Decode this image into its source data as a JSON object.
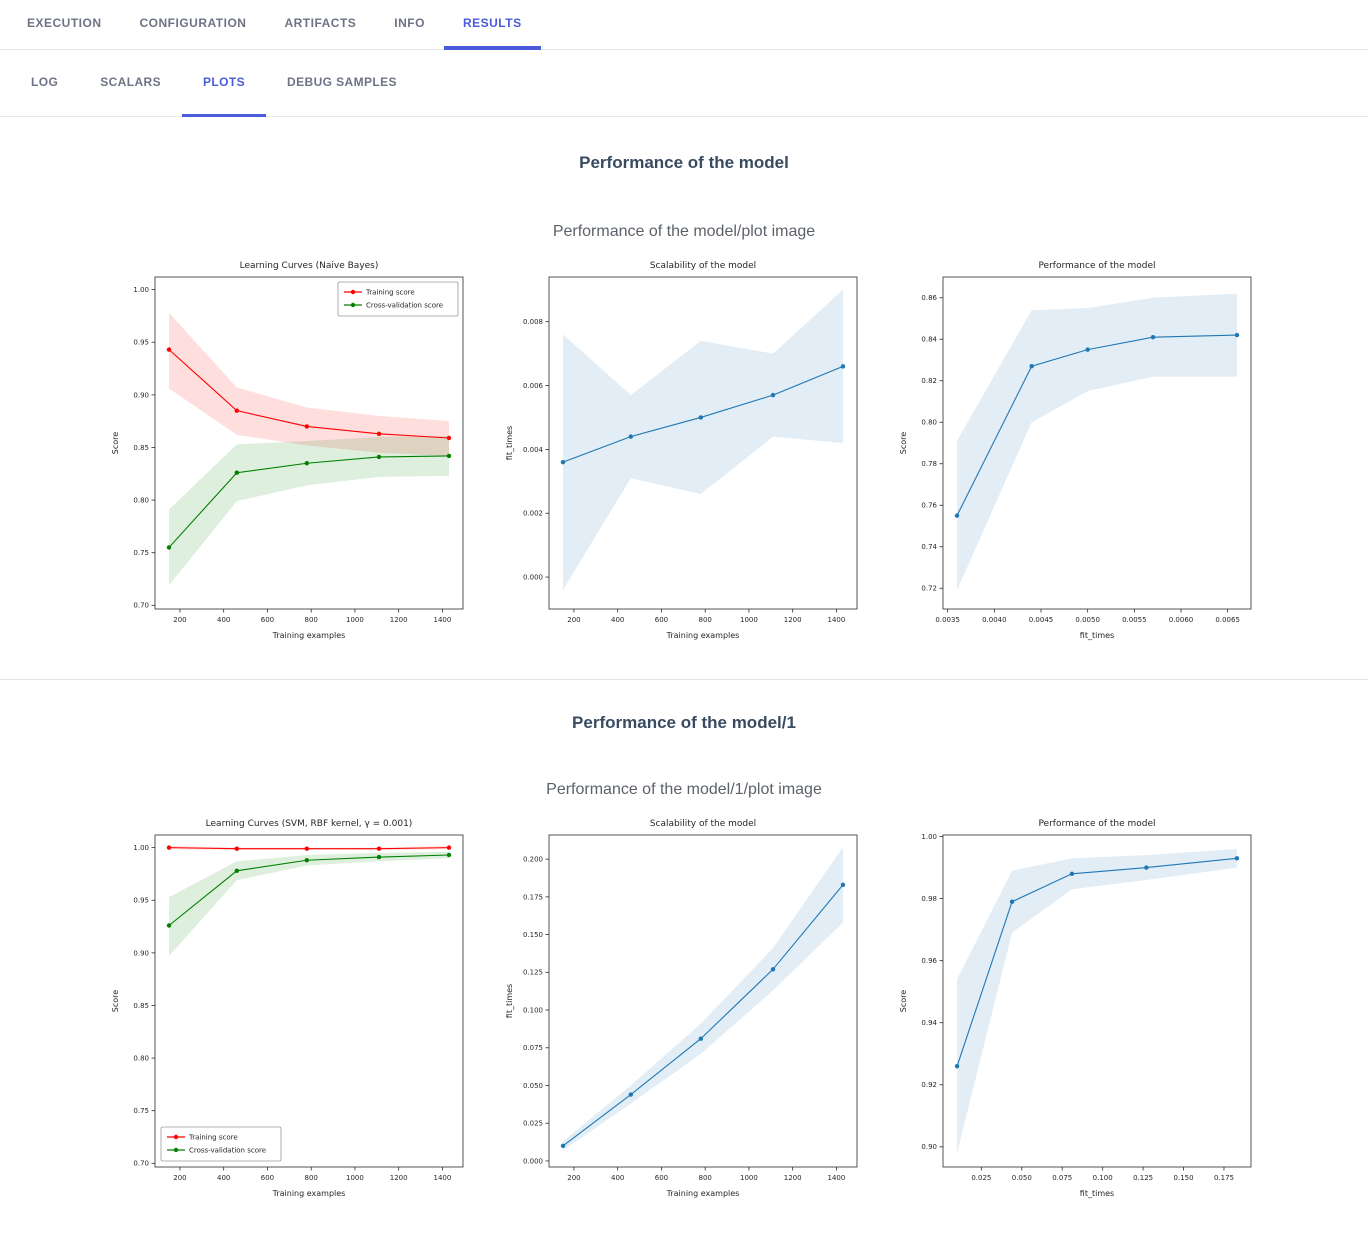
{
  "theme": {
    "accent": "#4a5bdb",
    "tab_inactive": "#6e7285",
    "heading_color": "#394b61",
    "plot_title_color": "#5c6269",
    "divider_color": "#e3e4e9"
  },
  "nav": {
    "tabs": [
      {
        "label": "EXECUTION",
        "active": false
      },
      {
        "label": "CONFIGURATION",
        "active": false
      },
      {
        "label": "ARTIFACTS",
        "active": false
      },
      {
        "label": "INFO",
        "active": false
      },
      {
        "label": "RESULTS",
        "active": true
      }
    ]
  },
  "subnav": {
    "tabs": [
      {
        "label": "LOG",
        "active": false
      },
      {
        "label": "SCALARS",
        "active": false
      },
      {
        "label": "PLOTS",
        "active": true
      },
      {
        "label": "DEBUG SAMPLES",
        "active": false
      }
    ]
  },
  "sections": [
    {
      "heading": "Performance of the model",
      "plot_title": "Performance of the model/plot image"
    },
    {
      "heading": "Performance of the model/1",
      "plot_title": "Performance of the model/1/plot image"
    }
  ],
  "chart_data": [
    {
      "type": "line",
      "row": 0,
      "title": "Learning Curves (Naive Bayes)",
      "xlabel": "Training examples",
      "ylabel": "Score",
      "xlim": [
        86,
        1494
      ],
      "ylim": [
        0.6965,
        1.012
      ],
      "xticks": [
        200,
        400,
        600,
        800,
        1000,
        1200,
        1400
      ],
      "xtick_labels": [
        "200",
        "400",
        "600",
        "800",
        "1000",
        "1200",
        "1400"
      ],
      "yticks": [
        0.7,
        0.75,
        0.8,
        0.85,
        0.9,
        0.95,
        1.0
      ],
      "ytick_labels": [
        "0.70",
        "0.75",
        "0.80",
        "0.85",
        "0.90",
        "0.95",
        "1.00"
      ],
      "legend": "top-right",
      "grid": false,
      "series": [
        {
          "name": "Training score",
          "color": "#ff0000",
          "x": [
            150,
            460,
            780,
            1110,
            1430
          ],
          "y": [
            0.943,
            0.885,
            0.87,
            0.863,
            0.859
          ],
          "band_low": [
            0.906,
            0.862,
            0.852,
            0.845,
            0.842
          ],
          "band_high": [
            0.978,
            0.907,
            0.888,
            0.88,
            0.875
          ]
        },
        {
          "name": "Cross-validation score",
          "color": "#008000",
          "x": [
            150,
            460,
            780,
            1110,
            1430
          ],
          "y": [
            0.755,
            0.826,
            0.835,
            0.841,
            0.842
          ],
          "band_low": [
            0.719,
            0.799,
            0.814,
            0.822,
            0.823
          ],
          "band_high": [
            0.791,
            0.853,
            0.856,
            0.86,
            0.861
          ]
        }
      ]
    },
    {
      "type": "line",
      "row": 0,
      "title": "Scalability of the model",
      "xlabel": "Training examples",
      "ylabel": "fit_times",
      "xlim": [
        86,
        1494
      ],
      "ylim": [
        -0.001,
        0.0094
      ],
      "xticks": [
        200,
        400,
        600,
        800,
        1000,
        1200,
        1400
      ],
      "xtick_labels": [
        "200",
        "400",
        "600",
        "800",
        "1000",
        "1200",
        "1400"
      ],
      "yticks": [
        0.0,
        0.002,
        0.004,
        0.006,
        0.008
      ],
      "ytick_labels": [
        "0.000",
        "0.002",
        "0.004",
        "0.006",
        "0.008"
      ],
      "legend": null,
      "grid": false,
      "series": [
        {
          "name": "fit_times",
          "color": "#1f77b4",
          "x": [
            150,
            460,
            780,
            1110,
            1430
          ],
          "y": [
            0.0036,
            0.0044,
            0.005,
            0.0057,
            0.0066
          ],
          "band_low": [
            -0.0004,
            0.0031,
            0.0026,
            0.0044,
            0.0042
          ],
          "band_high": [
            0.0076,
            0.0057,
            0.0074,
            0.007,
            0.009
          ]
        }
      ]
    },
    {
      "type": "line",
      "row": 0,
      "title": "Performance of the model",
      "xlabel": "fit_times",
      "ylabel": "Score",
      "xlim": [
        0.00345,
        0.00675
      ],
      "ylim": [
        0.71,
        0.87
      ],
      "xticks": [
        0.0035,
        0.004,
        0.0045,
        0.005,
        0.0055,
        0.006,
        0.0065
      ],
      "xtick_labels": [
        "0.0035",
        "0.0040",
        "0.0045",
        "0.0050",
        "0.0055",
        "0.0060",
        "0.0065"
      ],
      "yticks": [
        0.72,
        0.74,
        0.76,
        0.78,
        0.8,
        0.82,
        0.84,
        0.86
      ],
      "ytick_labels": [
        "0.72",
        "0.74",
        "0.76",
        "0.78",
        "0.80",
        "0.82",
        "0.84",
        "0.86"
      ],
      "legend": null,
      "grid": false,
      "series": [
        {
          "name": "Score",
          "color": "#1f77b4",
          "x": [
            0.0036,
            0.0044,
            0.005,
            0.0057,
            0.0066
          ],
          "y": [
            0.755,
            0.827,
            0.835,
            0.841,
            0.842
          ],
          "band_low": [
            0.719,
            0.8,
            0.815,
            0.822,
            0.822
          ],
          "band_high": [
            0.791,
            0.854,
            0.855,
            0.86,
            0.862
          ]
        }
      ]
    },
    {
      "type": "line",
      "row": 1,
      "title": "Learning Curves (SVM, RBF kernel, γ = 0.001)",
      "xlabel": "Training examples",
      "ylabel": "Score",
      "xlim": [
        86,
        1494
      ],
      "ylim": [
        0.6965,
        1.012
      ],
      "xticks": [
        200,
        400,
        600,
        800,
        1000,
        1200,
        1400
      ],
      "xtick_labels": [
        "200",
        "400",
        "600",
        "800",
        "1000",
        "1200",
        "1400"
      ],
      "yticks": [
        0.7,
        0.75,
        0.8,
        0.85,
        0.9,
        0.95,
        1.0
      ],
      "ytick_labels": [
        "0.70",
        "0.75",
        "0.80",
        "0.85",
        "0.90",
        "0.95",
        "1.00"
      ],
      "legend": "bottom-left",
      "grid": false,
      "series": [
        {
          "name": "Training score",
          "color": "#ff0000",
          "x": [
            150,
            460,
            780,
            1110,
            1430
          ],
          "y": [
            1.0,
            0.999,
            0.999,
            0.999,
            1.0
          ],
          "band_low": [
            0.9985,
            0.998,
            0.998,
            0.998,
            0.9985
          ],
          "band_high": [
            1.0015,
            1.0,
            1.0,
            1.0,
            1.0015
          ]
        },
        {
          "name": "Cross-validation score",
          "color": "#008000",
          "x": [
            150,
            460,
            780,
            1110,
            1430
          ],
          "y": [
            0.926,
            0.978,
            0.988,
            0.991,
            0.993
          ],
          "band_low": [
            0.897,
            0.969,
            0.983,
            0.987,
            0.99
          ],
          "band_high": [
            0.953,
            0.987,
            0.993,
            0.995,
            0.996
          ]
        }
      ]
    },
    {
      "type": "line",
      "row": 1,
      "title": "Scalability of the model",
      "xlabel": "Training examples",
      "ylabel": "fit_times",
      "xlim": [
        86,
        1494
      ],
      "ylim": [
        -0.004,
        0.216
      ],
      "xticks": [
        200,
        400,
        600,
        800,
        1000,
        1200,
        1400
      ],
      "xtick_labels": [
        "200",
        "400",
        "600",
        "800",
        "1000",
        "1200",
        "1400"
      ],
      "yticks": [
        0.0,
        0.025,
        0.05,
        0.075,
        0.1,
        0.125,
        0.15,
        0.175,
        0.2
      ],
      "ytick_labels": [
        "0.000",
        "0.025",
        "0.050",
        "0.075",
        "0.100",
        "0.125",
        "0.150",
        "0.175",
        "0.200"
      ],
      "legend": null,
      "grid": false,
      "series": [
        {
          "name": "fit_times",
          "color": "#1f77b4",
          "x": [
            150,
            460,
            780,
            1110,
            1430
          ],
          "y": [
            0.01,
            0.044,
            0.081,
            0.127,
            0.183
          ],
          "band_low": [
            0.007,
            0.038,
            0.071,
            0.113,
            0.158
          ],
          "band_high": [
            0.013,
            0.05,
            0.091,
            0.141,
            0.208
          ]
        }
      ]
    },
    {
      "type": "line",
      "row": 1,
      "title": "Performance of the model",
      "xlabel": "fit_times",
      "ylabel": "Score",
      "xlim": [
        0.0013,
        0.1917
      ],
      "ylim": [
        0.8935,
        1.0005
      ],
      "xticks": [
        0.025,
        0.05,
        0.075,
        0.1,
        0.125,
        0.15,
        0.175
      ],
      "xtick_labels": [
        "0.025",
        "0.050",
        "0.075",
        "0.100",
        "0.125",
        "0.150",
        "0.175"
      ],
      "yticks": [
        0.9,
        0.92,
        0.94,
        0.96,
        0.98,
        1.0
      ],
      "ytick_labels": [
        "0.90",
        "0.92",
        "0.94",
        "0.96",
        "0.98",
        "1.00"
      ],
      "legend": null,
      "grid": false,
      "series": [
        {
          "name": "Score",
          "color": "#1f77b4",
          "x": [
            0.01,
            0.044,
            0.081,
            0.127,
            0.183
          ],
          "y": [
            0.926,
            0.979,
            0.988,
            0.99,
            0.993
          ],
          "band_low": [
            0.898,
            0.969,
            0.983,
            0.986,
            0.99
          ],
          "band_high": [
            0.954,
            0.989,
            0.993,
            0.994,
            0.996
          ]
        }
      ]
    }
  ]
}
